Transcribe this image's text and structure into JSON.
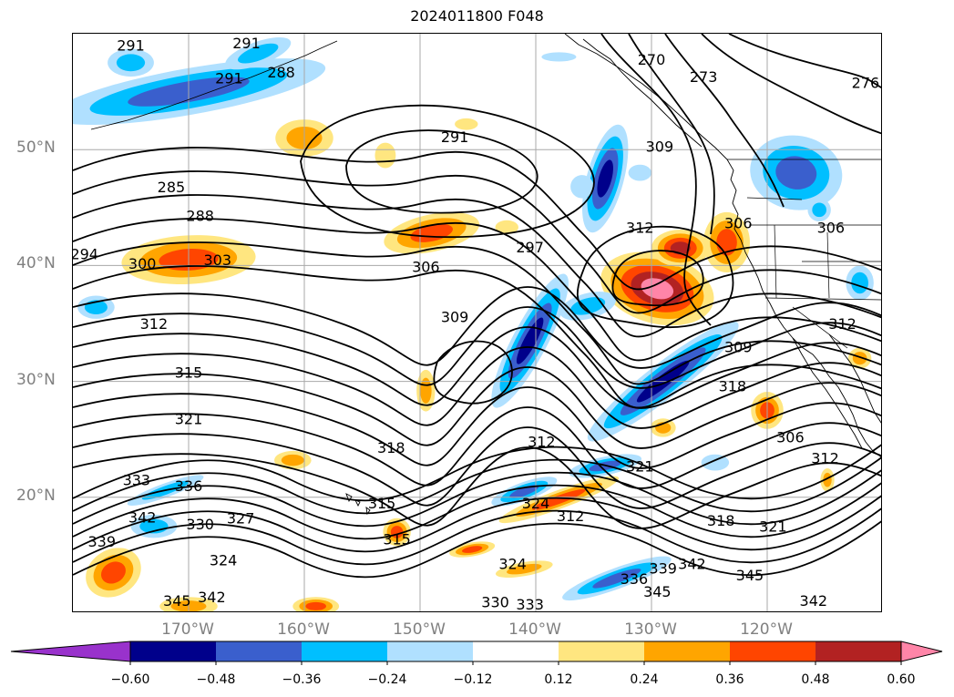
{
  "title": "2024011800 F048",
  "lat_labels": [
    {
      "text": "50°N",
      "lat": 50
    },
    {
      "text": "40°N",
      "lat": 40
    },
    {
      "text": "30°N",
      "lat": 30
    },
    {
      "text": "20°N",
      "lat": 20
    }
  ],
  "lon_labels": [
    {
      "text": "170°W",
      "lon": -170
    },
    {
      "text": "160°W",
      "lon": -160
    },
    {
      "text": "150°W",
      "lon": -150
    },
    {
      "text": "140°W",
      "lon": -140
    },
    {
      "text": "130°W",
      "lon": -130
    },
    {
      "text": "120°W",
      "lon": -120
    }
  ],
  "map_extent": {
    "lon_min": -180,
    "lon_max": -110,
    "lat_min": 10,
    "lat_max": 60
  },
  "contour_labels": [
    {
      "text": "291",
      "lon": -175.0,
      "lat": 59.0
    },
    {
      "text": "291",
      "lon": -165.0,
      "lat": 59.2
    },
    {
      "text": "291",
      "lon": -166.5,
      "lat": 56.2
    },
    {
      "text": "288",
      "lon": -162.0,
      "lat": 56.7
    },
    {
      "text": "270",
      "lon": -130.0,
      "lat": 57.8
    },
    {
      "text": "273",
      "lon": -125.5,
      "lat": 56.3
    },
    {
      "text": "276",
      "lon": -111.5,
      "lat": 55.8
    },
    {
      "text": "291",
      "lon": -147.0,
      "lat": 51.1
    },
    {
      "text": "309",
      "lon": -129.3,
      "lat": 50.3
    },
    {
      "text": "285",
      "lon": -171.5,
      "lat": 46.8
    },
    {
      "text": "288",
      "lon": -169.0,
      "lat": 44.3
    },
    {
      "text": "306",
      "lon": -122.5,
      "lat": 43.7
    },
    {
      "text": "306",
      "lon": -114.5,
      "lat": 43.3
    },
    {
      "text": "312",
      "lon": -131.0,
      "lat": 43.3
    },
    {
      "text": "297",
      "lon": -140.5,
      "lat": 41.6
    },
    {
      "text": "294",
      "lon": -179.0,
      "lat": 41.0
    },
    {
      "text": "300",
      "lon": -174.0,
      "lat": 40.2
    },
    {
      "text": "303",
      "lon": -167.5,
      "lat": 40.5
    },
    {
      "text": "306",
      "lon": -149.5,
      "lat": 39.9
    },
    {
      "text": "309",
      "lon": -147.0,
      "lat": 35.6
    },
    {
      "text": "312",
      "lon": -173.0,
      "lat": 35.0
    },
    {
      "text": "312",
      "lon": -113.5,
      "lat": 35.0
    },
    {
      "text": "309",
      "lon": -122.5,
      "lat": 33.0
    },
    {
      "text": "315",
      "lon": -170.0,
      "lat": 30.8
    },
    {
      "text": "318",
      "lon": -123.0,
      "lat": 29.6
    },
    {
      "text": "321",
      "lon": -170.0,
      "lat": 26.8
    },
    {
      "text": "306",
      "lon": -118.0,
      "lat": 25.2
    },
    {
      "text": "312",
      "lon": -139.5,
      "lat": 24.8
    },
    {
      "text": "318",
      "lon": -152.5,
      "lat": 24.3
    },
    {
      "text": "312",
      "lon": -115.0,
      "lat": 23.4
    },
    {
      "text": "321",
      "lon": -131.0,
      "lat": 22.7
    },
    {
      "text": "333",
      "lon": -174.5,
      "lat": 21.5
    },
    {
      "text": "336",
      "lon": -170.0,
      "lat": 21.0
    },
    {
      "text": "315",
      "lon": -153.3,
      "lat": 19.5
    },
    {
      "text": "324",
      "lon": -140.0,
      "lat": 19.5
    },
    {
      "text": "342",
      "lon": -174.0,
      "lat": 18.3
    },
    {
      "text": "327",
      "lon": -165.5,
      "lat": 18.2
    },
    {
      "text": "312",
      "lon": -137.0,
      "lat": 18.4
    },
    {
      "text": "330",
      "lon": -169.0,
      "lat": 17.7
    },
    {
      "text": "318",
      "lon": -124.0,
      "lat": 18.0
    },
    {
      "text": "321",
      "lon": -119.5,
      "lat": 17.5
    },
    {
      "text": "339",
      "lon": -177.5,
      "lat": 16.2
    },
    {
      "text": "315",
      "lon": -152.0,
      "lat": 16.4
    },
    {
      "text": "324",
      "lon": -167.0,
      "lat": 14.6
    },
    {
      "text": "324",
      "lon": -142.0,
      "lat": 14.3
    },
    {
      "text": "342",
      "lon": -126.5,
      "lat": 14.3
    },
    {
      "text": "339",
      "lon": -129.0,
      "lat": 13.9
    },
    {
      "text": "336",
      "lon": -131.5,
      "lat": 13.0
    },
    {
      "text": "345",
      "lon": -121.5,
      "lat": 13.3
    },
    {
      "text": "345",
      "lon": -129.5,
      "lat": 11.9
    },
    {
      "text": "342",
      "lon": -116.0,
      "lat": 11.1
    },
    {
      "text": "342",
      "lon": -168.0,
      "lat": 11.4
    },
    {
      "text": "345",
      "lon": -171.0,
      "lat": 11.1
    },
    {
      "text": "330",
      "lon": -143.5,
      "lat": 11.0
    },
    {
      "text": "333",
      "lon": -140.5,
      "lat": 10.8
    }
  ],
  "colorbar": {
    "bounds": [
      -0.72,
      -0.6,
      -0.48,
      -0.36,
      -0.24,
      -0.12,
      0.12,
      0.24,
      0.36,
      0.48,
      0.6,
      0.72
    ],
    "colors": [
      "#9932cc",
      "#00008b",
      "#3a5fcd",
      "#00bfff",
      "#b0e0ff",
      "#ffffff",
      "#ffe680",
      "#ffa500",
      "#ff4500",
      "#b22222",
      "#ff85a8"
    ],
    "tick_labels": [
      "−0.60",
      "−0.48",
      "−0.36",
      "−0.24",
      "−0.12",
      "0.12",
      "0.24",
      "0.36",
      "0.48",
      "0.60"
    ],
    "extend": "both"
  },
  "shaded_features": [
    {
      "kind": "neg",
      "lon": -170,
      "lat": 55.0,
      "rx": 12,
      "ry": 2.0,
      "rot": -10,
      "levels": 3
    },
    {
      "kind": "neg",
      "lon": -175,
      "lat": 57.5,
      "rx": 2.0,
      "ry": 1.2,
      "rot": 0,
      "levels": 2
    },
    {
      "kind": "neg",
      "lon": -164,
      "lat": 58.3,
      "rx": 3.0,
      "ry": 1.0,
      "rot": -20,
      "levels": 2
    },
    {
      "kind": "pos",
      "lon": -160,
      "lat": 51.0,
      "rx": 2.5,
      "ry": 1.6,
      "rot": 0,
      "levels": 2
    },
    {
      "kind": "pos",
      "lon": -153,
      "lat": 49.5,
      "rx": 0.9,
      "ry": 1.1,
      "rot": 0,
      "levels": 1
    },
    {
      "kind": "pos",
      "lon": -146,
      "lat": 52.2,
      "rx": 1.0,
      "ry": 0.5,
      "rot": 0,
      "levels": 1
    },
    {
      "kind": "pos",
      "lon": -170,
      "lat": 40.5,
      "rx": 5.8,
      "ry": 2.1,
      "rot": -3,
      "levels": 3
    },
    {
      "kind": "pos",
      "lon": -149,
      "lat": 42.8,
      "rx": 4.2,
      "ry": 1.6,
      "rot": -12,
      "levels": 3
    },
    {
      "kind": "pos",
      "lon": -142.5,
      "lat": 43.3,
      "rx": 1.0,
      "ry": 0.6,
      "rot": 0,
      "levels": 1
    },
    {
      "kind": "neg",
      "lon": -134,
      "lat": 47.5,
      "rx": 1.6,
      "ry": 4.8,
      "rot": 15,
      "levels": 4
    },
    {
      "kind": "neg",
      "lon": -131,
      "lat": 48.0,
      "rx": 1.0,
      "ry": 0.7,
      "rot": 0,
      "levels": 1
    },
    {
      "kind": "pos",
      "lon": -129.5,
      "lat": 38.0,
      "rx": 5.0,
      "ry": 3.0,
      "rot": 15,
      "levels": 5
    },
    {
      "kind": "pos",
      "lon": -127.5,
      "lat": 41.5,
      "rx": 2.5,
      "ry": 1.6,
      "rot": 0,
      "levels": 4
    },
    {
      "kind": "pos",
      "lon": -123.5,
      "lat": 42.0,
      "rx": 2.0,
      "ry": 2.6,
      "rot": 0,
      "levels": 3
    },
    {
      "kind": "neg",
      "lon": -140.5,
      "lat": 33.5,
      "rx": 1.5,
      "ry": 6.5,
      "rot": 28,
      "levels": 4
    },
    {
      "kind": "neg",
      "lon": -135.5,
      "lat": 36.5,
      "rx": 2.5,
      "ry": 1.1,
      "rot": -15,
      "levels": 2
    },
    {
      "kind": "neg",
      "lon": -129.0,
      "lat": 30.0,
      "rx": 8.2,
      "ry": 1.5,
      "rot": -38,
      "levels": 4
    },
    {
      "kind": "neg",
      "lon": -117.5,
      "lat": 48.0,
      "rx": 4.0,
      "ry": 3.2,
      "rot": 10,
      "levels": 3
    },
    {
      "kind": "neg",
      "lon": -112.0,
      "lat": 38.5,
      "rx": 1.2,
      "ry": 1.5,
      "rot": 0,
      "levels": 2
    },
    {
      "kind": "pos",
      "lon": -120.0,
      "lat": 27.5,
      "rx": 1.4,
      "ry": 1.6,
      "rot": 0,
      "levels": 3
    },
    {
      "kind": "pos",
      "lon": -112.0,
      "lat": 32.0,
      "rx": 1.0,
      "ry": 0.9,
      "rot": 0,
      "levels": 2
    },
    {
      "kind": "pos",
      "lon": -129.0,
      "lat": 26.0,
      "rx": 1.1,
      "ry": 0.8,
      "rot": 0,
      "levels": 2
    },
    {
      "kind": "pos",
      "lon": -149.5,
      "lat": 29.2,
      "rx": 0.8,
      "ry": 1.8,
      "rot": 0,
      "levels": 2
    },
    {
      "kind": "neg",
      "lon": -141,
      "lat": 20.5,
      "rx": 3.0,
      "ry": 0.8,
      "rot": -20,
      "levels": 3
    },
    {
      "kind": "neg",
      "lon": -134,
      "lat": 22.7,
      "rx": 3.2,
      "ry": 0.8,
      "rot": -12,
      "levels": 3
    },
    {
      "kind": "pos",
      "lon": -138,
      "lat": 19.8,
      "rx": 5.5,
      "ry": 0.8,
      "rot": -20,
      "levels": 3
    },
    {
      "kind": "pos",
      "lon": -141,
      "lat": 13.8,
      "rx": 2.5,
      "ry": 0.6,
      "rot": -10,
      "levels": 2
    },
    {
      "kind": "pos",
      "lon": -145.5,
      "lat": 15.5,
      "rx": 2.0,
      "ry": 0.6,
      "rot": -10,
      "levels": 3
    },
    {
      "kind": "pos",
      "lon": -152,
      "lat": 17.0,
      "rx": 1.2,
      "ry": 1.2,
      "rot": 0,
      "levels": 3
    },
    {
      "kind": "pos",
      "lon": -161,
      "lat": 23.2,
      "rx": 1.6,
      "ry": 0.8,
      "rot": 0,
      "levels": 2
    },
    {
      "kind": "neg",
      "lon": -172,
      "lat": 20.6,
      "rx": 3.5,
      "ry": 0.6,
      "rot": -20,
      "levels": 2
    },
    {
      "kind": "pos",
      "lon": -176.5,
      "lat": 13.5,
      "rx": 2.5,
      "ry": 2.0,
      "rot": -30,
      "levels": 3
    },
    {
      "kind": "pos",
      "lon": -170,
      "lat": 10.6,
      "rx": 2.5,
      "ry": 0.8,
      "rot": 0,
      "levels": 2
    },
    {
      "kind": "pos",
      "lon": -159,
      "lat": 10.6,
      "rx": 2.0,
      "ry": 0.8,
      "rot": 0,
      "levels": 3
    },
    {
      "kind": "neg",
      "lon": -178,
      "lat": 36.4,
      "rx": 1.6,
      "ry": 1.0,
      "rot": 0,
      "levels": 2
    },
    {
      "kind": "neg",
      "lon": -173,
      "lat": 17.5,
      "rx": 2.0,
      "ry": 1.0,
      "rot": 0,
      "levels": 2
    },
    {
      "kind": "neg",
      "lon": -133,
      "lat": 13.0,
      "rx": 5.0,
      "ry": 0.9,
      "rot": -20,
      "levels": 3
    },
    {
      "kind": "neg",
      "lon": -136,
      "lat": 46.8,
      "rx": 1.0,
      "ry": 1.0,
      "rot": 0,
      "levels": 1
    },
    {
      "kind": "neg",
      "lon": -138,
      "lat": 58.0,
      "rx": 1.5,
      "ry": 0.4,
      "rot": 0,
      "levels": 1
    },
    {
      "kind": "pos",
      "lon": -114.8,
      "lat": 21.5,
      "rx": 0.6,
      "ry": 1.0,
      "rot": 0,
      "levels": 2
    },
    {
      "kind": "neg",
      "lon": -124.5,
      "lat": 23.0,
      "rx": 1.2,
      "ry": 0.7,
      "rot": 0,
      "levels": 1
    },
    {
      "kind": "neg",
      "lon": -115.5,
      "lat": 44.8,
      "rx": 1.0,
      "ry": 1.0,
      "rot": 0,
      "levels": 2
    }
  ]
}
